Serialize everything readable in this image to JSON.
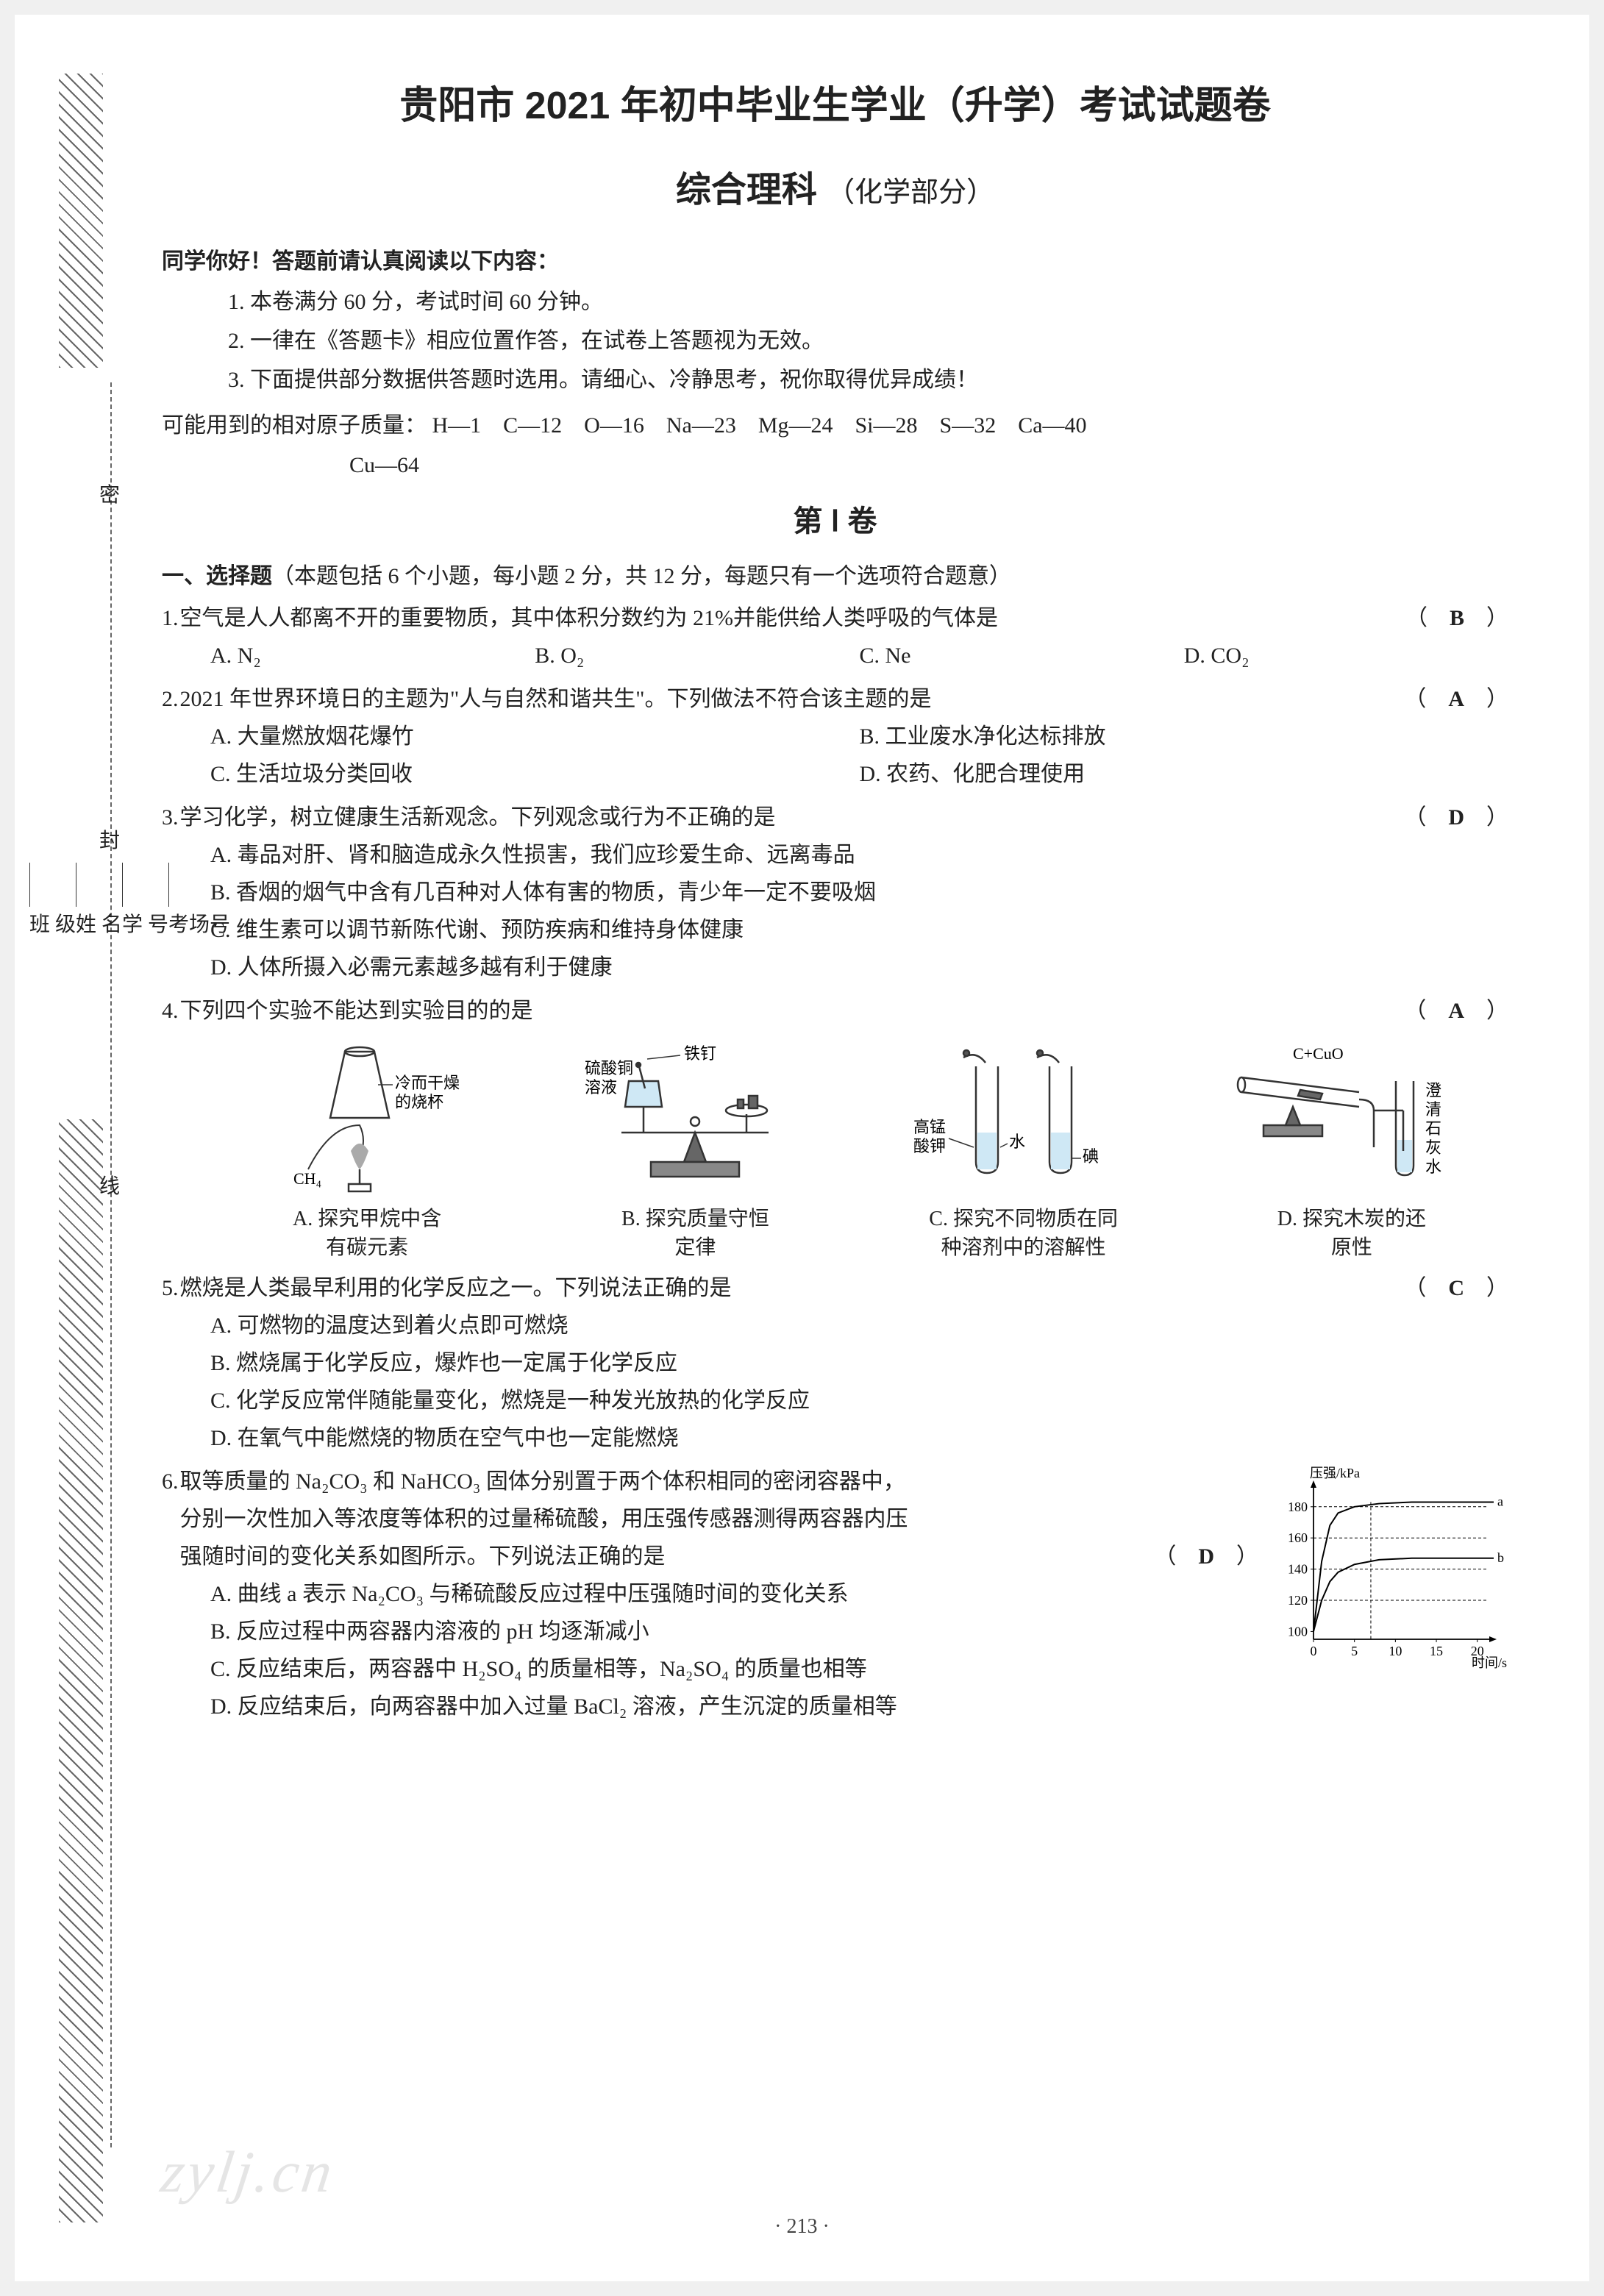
{
  "title": "贵阳市 2021 年初中毕业生学业（升学）考试试题卷",
  "subtitle_main": "综合理科",
  "subtitle_part": "（化学部分）",
  "greeting": "同学你好！答题前请认真阅读以下内容：",
  "instr": [
    "1. 本卷满分 60 分，考试时间 60 分钟。",
    "2. 一律在《答题卡》相应位置作答，在试卷上答题视为无效。",
    "3. 下面提供部分数据供答题时选用。请细心、冷静思考，祝你取得优异成绩！"
  ],
  "atomic_label": "可能用到的相对原子质量：",
  "atomic_line1": "H—1 C—12 O—16 Na—23 Mg—24 Si—28 S—32 Ca—40",
  "atomic_line2": "Cu—64",
  "section_header": "第 Ⅰ 卷",
  "part1_title": "一、选择题",
  "part1_note": "（本题包括 6 个小题，每小题 2 分，共 12 分，每题只有一个选项符合题意）",
  "margin": {
    "labels": [
      "考场号",
      "学 号",
      "姓 名",
      "班 级"
    ],
    "seal": [
      "密",
      "封",
      "线"
    ]
  },
  "q1": {
    "num": "1.",
    "text": "空气是人人都离不开的重要物质，其中体积分数约为 21%并能供给人类呼吸的气体是",
    "answer": "B",
    "opts": [
      "A. N₂",
      "B. O₂",
      "C. Ne",
      "D. CO₂"
    ]
  },
  "q2": {
    "num": "2.",
    "text": "2021 年世界环境日的主题为\"人与自然和谐共生\"。下列做法不符合该主题的是",
    "answer": "A",
    "opts": [
      "A. 大量燃放烟花爆竹",
      "B. 工业废水净化达标排放",
      "C. 生活垃圾分类回收",
      "D. 农药、化肥合理使用"
    ]
  },
  "q3": {
    "num": "3.",
    "text": "学习化学，树立健康生活新观念。下列观念或行为不正确的是",
    "answer": "D",
    "opts": [
      "A. 毒品对肝、肾和脑造成永久性损害，我们应珍爱生命、远离毒品",
      "B. 香烟的烟气中含有几百种对人体有害的物质，青少年一定不要吸烟",
      "C. 维生素可以调节新陈代谢、预防疾病和维持身体健康",
      "D. 人体所摄入必需元素越多越有利于健康"
    ]
  },
  "q4": {
    "num": "4.",
    "text": "下列四个实验不能达到实验目的的是",
    "answer": "A",
    "figs": {
      "a_top": "冷而干燥",
      "a_bot": "的烧杯",
      "a_ch4": "CH₄",
      "b_l1": "硫酸铜",
      "b_l2": "溶液",
      "b_nail": "铁钉",
      "c_l1": "高锰",
      "c_l2": "酸钾",
      "c_water": "水",
      "c_iodine": "碘",
      "d_top": "C+CuO",
      "d_l1": "澄",
      "d_l2": "清",
      "d_l3": "石",
      "d_l4": "灰",
      "d_l5": "水"
    },
    "opts": [
      "A. 探究甲烷中含\n有碳元素",
      "B. 探究质量守恒\n定律",
      "C. 探究不同物质在同\n种溶剂中的溶解性",
      "D. 探究木炭的还\n原性"
    ]
  },
  "q5": {
    "num": "5.",
    "text": "燃烧是人类最早利用的化学反应之一。下列说法正确的是",
    "answer": "C",
    "opts": [
      "A. 可燃物的温度达到着火点即可燃烧",
      "B. 燃烧属于化学反应，爆炸也一定属于化学反应",
      "C. 化学反应常伴随能量变化，燃烧是一种发光放热的化学反应",
      "D. 在氧气中能燃烧的物质在空气中也一定能燃烧"
    ]
  },
  "q6": {
    "num": "6.",
    "stem1": "取等质量的 Na₂CO₃ 和 NaHCO₃ 固体分别置于两个体积相同的密闭容器中，",
    "stem2": "分别一次性加入等浓度等体积的过量稀硫酸，用压强传感器测得两容器内压",
    "stem3": "强随时间的变化关系如图所示。下列说法正确的是",
    "answer": "D",
    "opts": [
      "A. 曲线 a 表示 Na₂CO₃ 与稀硫酸反应过程中压强随时间的变化关系",
      "B. 反应过程中两容器内溶液的 pH 均逐渐减小",
      "C. 反应结束后，两容器中 H₂SO₄ 的质量相等，Na₂SO₄ 的质量也相等",
      "D. 反应结束后，向两容器中加入过量 BaCl₂ 溶液，产生沉淀的质量相等"
    ],
    "chart": {
      "ylabel": "压强/kPa",
      "xlabel": "时间/s",
      "yticks": [
        "100",
        "120",
        "140",
        "160",
        "180"
      ],
      "ytick_values": [
        100,
        120,
        140,
        160,
        180
      ],
      "xticks": [
        "0",
        "5",
        "10",
        "15",
        "20"
      ],
      "xtick_values": [
        0,
        5,
        10,
        15,
        20
      ],
      "xlim": [
        0,
        22
      ],
      "ylim": [
        95,
        195
      ],
      "curve_a": {
        "label": "a",
        "points": [
          [
            0,
            100
          ],
          [
            1,
            145
          ],
          [
            2,
            168
          ],
          [
            3,
            176
          ],
          [
            5,
            180
          ],
          [
            8,
            182
          ],
          [
            12,
            183
          ],
          [
            18,
            183
          ],
          [
            22,
            183
          ]
        ]
      },
      "curve_b": {
        "label": "b",
        "points": [
          [
            0,
            100
          ],
          [
            1,
            120
          ],
          [
            2,
            132
          ],
          [
            3,
            138
          ],
          [
            5,
            143
          ],
          [
            8,
            146
          ],
          [
            12,
            147
          ],
          [
            18,
            147
          ],
          [
            22,
            147
          ]
        ]
      },
      "line_color": "#000000",
      "dash": "4,3",
      "background": "#ffffff"
    }
  },
  "page_num": "· 213 ·",
  "watermark": "zylj.cn"
}
